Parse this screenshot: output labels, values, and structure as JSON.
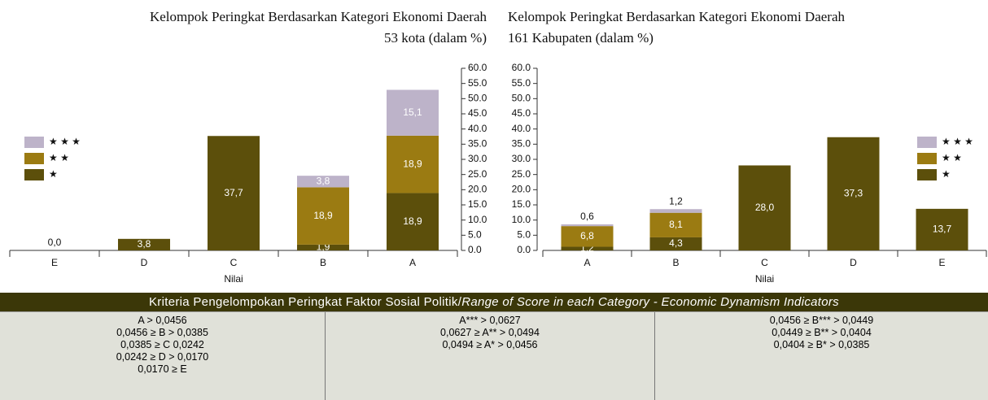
{
  "chart_data": [
    {
      "type": "bar",
      "stacked": true,
      "title": "Kelompok Peringkat Berdasarkan Kategori Ekonomi Daerah",
      "subtitle": "53 kota (dalam %)",
      "categories": [
        "E",
        "D",
        "C",
        "B",
        "A"
      ],
      "xlabel": "Nilai",
      "yaxis_side": "right",
      "legend": "center left",
      "series": [
        {
          "name": "★",
          "color": "#5c4f0b",
          "values": [
            0.0,
            3.8,
            37.7,
            1.9,
            18.9
          ],
          "value_labels": [
            "0,0",
            "3,8",
            "37,7",
            "1,9",
            "18,9"
          ]
        },
        {
          "name": "★ ★",
          "color": "#9b7b12",
          "values": [
            null,
            null,
            null,
            18.9,
            18.9
          ],
          "value_labels": [
            null,
            null,
            null,
            "18,9",
            "18,9"
          ]
        },
        {
          "name": "★ ★ ★",
          "color": "#bdb3c9",
          "values": [
            null,
            null,
            null,
            3.8,
            15.1
          ],
          "value_labels": [
            null,
            null,
            null,
            "3,8",
            "15,1"
          ]
        }
      ],
      "ylim": [
        0,
        60
      ],
      "yticks": [
        {
          "value": 0,
          "label": "0.0"
        },
        {
          "value": 5,
          "label": "5.0"
        },
        {
          "value": 10,
          "label": "10.0"
        },
        {
          "value": 15,
          "label": "15.0"
        },
        {
          "value": 20,
          "label": "20.0"
        },
        {
          "value": 25,
          "label": "25.0"
        },
        {
          "value": 30,
          "label": "30.0"
        },
        {
          "value": 35,
          "label": "35.0"
        },
        {
          "value": 40,
          "label": "40.0"
        },
        {
          "value": 45,
          "label": "45.0"
        },
        {
          "value": 50,
          "label": "50.0"
        },
        {
          "value": 55,
          "label": "55.0"
        },
        {
          "value": 60,
          "label": "60.0"
        }
      ]
    },
    {
      "type": "bar",
      "stacked": true,
      "title": "Kelompok Peringkat Berdasarkan Kategori Ekonomi Daerah",
      "subtitle": "161 Kabupaten (dalam %)",
      "categories": [
        "A",
        "B",
        "C",
        "D",
        "E"
      ],
      "xlabel": "Nilai",
      "yaxis_side": "left",
      "legend": "center right",
      "series": [
        {
          "name": "★",
          "color": "#5c4f0b",
          "values": [
            1.2,
            4.3,
            28.0,
            37.3,
            13.7
          ],
          "value_labels": [
            "1,2",
            "4,3",
            "28,0",
            "37,3",
            "13,7"
          ]
        },
        {
          "name": "★ ★",
          "color": "#9b7b12",
          "values": [
            6.8,
            8.1,
            null,
            null,
            null
          ],
          "value_labels": [
            "6,8",
            "8,1",
            null,
            null,
            null
          ]
        },
        {
          "name": "★ ★ ★",
          "color": "#bdb3c9",
          "values": [
            0.6,
            1.2,
            null,
            null,
            null
          ],
          "value_labels": [
            "0,6",
            "1,2",
            null,
            null,
            null
          ]
        }
      ],
      "ylim": [
        0,
        60
      ],
      "yticks": [
        {
          "value": 0,
          "label": "0.0"
        },
        {
          "value": 5,
          "label": "5.0"
        },
        {
          "value": 10,
          "label": "10.0"
        },
        {
          "value": 15,
          "label": "15.0"
        },
        {
          "value": 20,
          "label": "20.0"
        },
        {
          "value": 25,
          "label": "25.0"
        },
        {
          "value": 30,
          "label": "30.0"
        },
        {
          "value": 35,
          "label": "35.0"
        },
        {
          "value": 40,
          "label": "40.0"
        },
        {
          "value": 45,
          "label": "45.0"
        },
        {
          "value": 50,
          "label": "50.0"
        },
        {
          "value": 55,
          "label": "55.0"
        },
        {
          "value": 60,
          "label": "60.0"
        }
      ]
    }
  ],
  "table": {
    "header": {
      "text": "Kriteria Pengelompokan Peringkat Faktor Sosial Politik/",
      "italic": "Range of Score in each Category - Economic Dynamism Indicators"
    },
    "columns": [
      [
        "A > 0,0456",
        "0,0456 ≥ B > 0,0385",
        "0,0385 ≥ C 0,0242",
        "0,0242 ≥ D > 0,0170",
        "0,0170 ≥ E"
      ],
      [
        "A*** > 0,0627",
        "0,0627 ≥ A** > 0,0494",
        "0,0494 ≥ A* > 0,0456"
      ],
      [
        "0,0456 ≥ B*** > 0,0449",
        "0,0449 ≥ B** > 0,0404",
        "0,0404 ≥ B* > 0,0385"
      ]
    ]
  }
}
